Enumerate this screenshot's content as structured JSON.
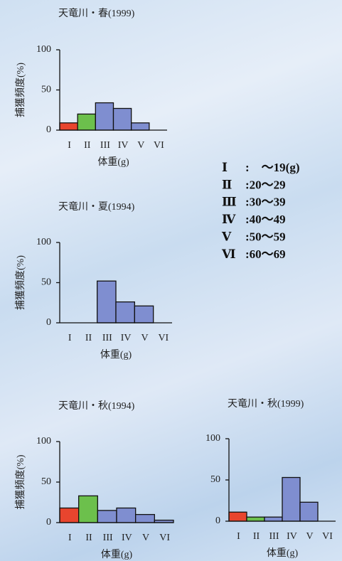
{
  "chart_data": [
    {
      "type": "bar",
      "title": "天竜川・春(1999)",
      "categories": [
        "I",
        "II",
        "III",
        "IV",
        "V",
        "VI"
      ],
      "values": [
        9,
        20,
        34,
        27,
        9,
        0
      ],
      "colors": [
        "#e8452e",
        "#6cc04c",
        "#7f8ed0",
        "#7f8ed0",
        "#7f8ed0",
        "#7f8ed0"
      ],
      "ylim": [
        0,
        100
      ],
      "yticks": [
        0,
        50,
        100
      ],
      "xlabel": "体重(g)",
      "ylabel": "捕獲頻度(%)"
    },
    {
      "type": "bar",
      "title": "天竜川・夏(1994)",
      "categories": [
        "I",
        "II",
        "III",
        "IV",
        "V",
        "VI"
      ],
      "values": [
        0,
        0,
        52,
        26,
        21,
        0
      ],
      "colors": [
        "#7f8ed0",
        "#7f8ed0",
        "#7f8ed0",
        "#7f8ed0",
        "#7f8ed0",
        "#7f8ed0"
      ],
      "ylim": [
        0,
        100
      ],
      "yticks": [
        0,
        50,
        100
      ],
      "xlabel": "体重(g)",
      "ylabel": "捕獲頻度(%)"
    },
    {
      "type": "bar",
      "title": "天竜川・秋(1994)",
      "categories": [
        "I",
        "II",
        "III",
        "IV",
        "V",
        "VI"
      ],
      "values": [
        18,
        33,
        15,
        18,
        10,
        3
      ],
      "colors": [
        "#e8452e",
        "#6cc04c",
        "#7f8ed0",
        "#7f8ed0",
        "#7f8ed0",
        "#7f8ed0"
      ],
      "ylim": [
        0,
        100
      ],
      "yticks": [
        0,
        50,
        100
      ],
      "xlabel": "体重(g)",
      "ylabel": "捕獲頻度(%)"
    },
    {
      "type": "bar",
      "title": "天竜川・秋(1999)",
      "categories": [
        "I",
        "II",
        "III",
        "IV",
        "V",
        "VI"
      ],
      "values": [
        11,
        5,
        5,
        53,
        23,
        0
      ],
      "colors": [
        "#e8452e",
        "#6cc04c",
        "#7f8ed0",
        "#7f8ed0",
        "#7f8ed0",
        "#7f8ed0"
      ],
      "ylim": [
        0,
        100
      ],
      "yticks": [
        0,
        50,
        100
      ],
      "xlabel": "体重(g)"
    }
  ],
  "legend": [
    {
      "class": "Ⅰ",
      "range": ":　～19(g)"
    },
    {
      "class": "Ⅱ",
      "range": ":20～29"
    },
    {
      "class": "Ⅲ",
      "range": ":30～39"
    },
    {
      "class": "Ⅳ",
      "range": ":40～49"
    },
    {
      "class": "Ⅴ",
      "range": ":50～59"
    },
    {
      "class": "Ⅵ",
      "range": ":60～69"
    }
  ]
}
